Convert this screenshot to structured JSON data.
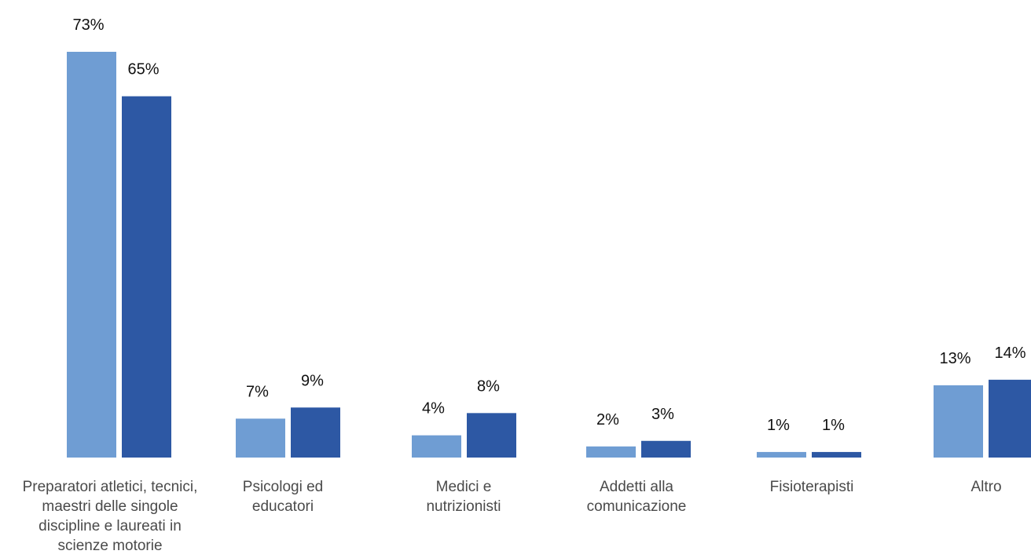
{
  "chart_data": {
    "type": "bar",
    "categories": [
      "Preparatori atletici, tecnici,\nmaestri delle singole\ndiscipline e laureati in\nscienze motorie",
      "Psicologi ed\neducatori",
      "Medici e\nnutrizionisti",
      "Addetti alla\ncomunicazione",
      "Fisioterapisti",
      "Altro"
    ],
    "series": [
      {
        "values": [
          73,
          7,
          4,
          2,
          1,
          13
        ],
        "labels": [
          "73%",
          "7%",
          "4%",
          "2%",
          "1%",
          "13%"
        ],
        "color": "#6f9dd3"
      },
      {
        "values": [
          65,
          9,
          8,
          3,
          1,
          14
        ],
        "labels": [
          "65%",
          "9%",
          "8%",
          "3%",
          "1%",
          "14%"
        ],
        "color": "#2d58a4"
      }
    ],
    "ylim": [
      0,
      73
    ],
    "grid": false,
    "legend": "none"
  }
}
